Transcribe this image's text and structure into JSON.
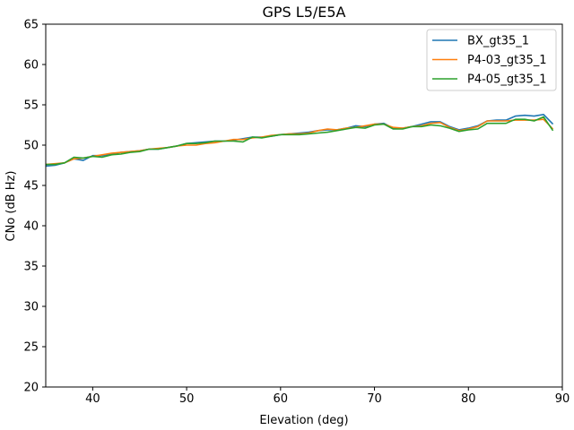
{
  "chart_data": {
    "type": "line",
    "title": "GPS L5/E5A",
    "xlabel": "Elevation (deg)",
    "ylabel": "CNo (dB Hz)",
    "xlim": [
      35,
      90
    ],
    "ylim": [
      20,
      65
    ],
    "xticks": [
      40,
      50,
      60,
      70,
      80,
      90
    ],
    "yticks": [
      20,
      25,
      30,
      35,
      40,
      45,
      50,
      55,
      60,
      65
    ],
    "grid": false,
    "legend_position": "top-right",
    "x": [
      35,
      36,
      37,
      38,
      39,
      40,
      41,
      42,
      43,
      44,
      45,
      46,
      47,
      48,
      49,
      50,
      51,
      52,
      53,
      54,
      55,
      56,
      57,
      58,
      59,
      60,
      61,
      62,
      63,
      64,
      65,
      66,
      67,
      68,
      69,
      70,
      71,
      72,
      73,
      74,
      75,
      76,
      77,
      78,
      79,
      80,
      81,
      82,
      83,
      84,
      85,
      86,
      87,
      88,
      89
    ],
    "series": [
      {
        "name": "BX_gt35_1",
        "color": "#1f77b4",
        "values": [
          47.4,
          47.5,
          47.8,
          48.3,
          48.1,
          48.7,
          48.7,
          48.9,
          49.1,
          49.2,
          49.3,
          49.5,
          49.5,
          49.7,
          49.9,
          50.2,
          50.3,
          50.4,
          50.5,
          50.5,
          50.6,
          50.8,
          51.0,
          51.0,
          51.1,
          51.3,
          51.4,
          51.5,
          51.6,
          51.8,
          51.9,
          51.9,
          52.1,
          52.4,
          52.3,
          52.6,
          52.7,
          52.1,
          52.1,
          52.3,
          52.6,
          52.9,
          52.9,
          52.3,
          51.9,
          52.1,
          52.4,
          53.0,
          53.1,
          53.1,
          53.6,
          53.7,
          53.6,
          53.8,
          52.6
        ]
      },
      {
        "name": "P4-03_gt35_1",
        "color": "#ff7f0e",
        "values": [
          47.6,
          47.7,
          47.8,
          48.3,
          48.4,
          48.6,
          48.8,
          49.0,
          49.1,
          49.2,
          49.3,
          49.5,
          49.6,
          49.7,
          49.9,
          50.0,
          50.0,
          50.2,
          50.3,
          50.5,
          50.7,
          50.7,
          50.9,
          51.0,
          51.2,
          51.3,
          51.4,
          51.4,
          51.5,
          51.8,
          52.0,
          51.9,
          52.1,
          52.2,
          52.4,
          52.6,
          52.6,
          52.2,
          52.1,
          52.3,
          52.4,
          52.7,
          52.8,
          52.2,
          51.8,
          52.0,
          52.3,
          53.0,
          53.0,
          53.0,
          53.1,
          53.1,
          53.1,
          53.2,
          52.0
        ]
      },
      {
        "name": "P4-05_gt35_1",
        "color": "#2ca02c",
        "values": [
          47.6,
          47.6,
          47.8,
          48.5,
          48.4,
          48.6,
          48.5,
          48.8,
          48.9,
          49.1,
          49.2,
          49.5,
          49.5,
          49.7,
          49.9,
          50.2,
          50.2,
          50.3,
          50.5,
          50.5,
          50.5,
          50.4,
          51.0,
          50.9,
          51.1,
          51.3,
          51.3,
          51.3,
          51.4,
          51.5,
          51.6,
          51.8,
          52.0,
          52.2,
          52.1,
          52.5,
          52.6,
          52.0,
          52.0,
          52.3,
          52.3,
          52.5,
          52.4,
          52.1,
          51.7,
          51.9,
          52.0,
          52.7,
          52.7,
          52.7,
          53.2,
          53.2,
          53.0,
          53.5,
          51.8
        ]
      }
    ]
  }
}
